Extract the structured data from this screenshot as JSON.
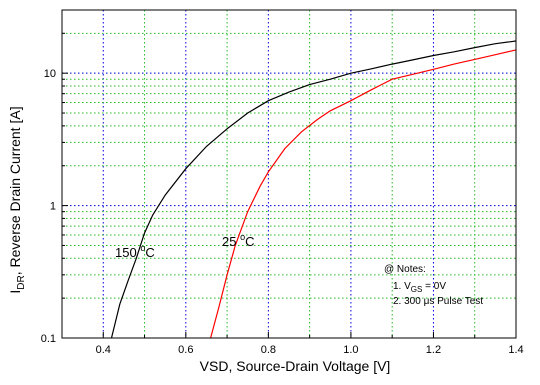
{
  "chart_data": {
    "type": "line",
    "xlabel": "VSD, Source-Drain Voltage [V]",
    "ylabel": {
      "main": "I",
      "sub": "DR",
      "rest": ", Reverse Drain Current [A]"
    },
    "x_scale": "linear",
    "y_scale": "log",
    "xlim": [
      0.3,
      1.4
    ],
    "ylim": [
      0.1,
      30
    ],
    "x_ticks": [
      "0.4",
      "0.6",
      "0.8",
      "1.0",
      "1.2",
      "1.4"
    ],
    "x_tick_values": [
      0.4,
      0.6,
      0.8,
      1.0,
      1.2,
      1.4
    ],
    "y_ticks": [
      "0.1",
      "1",
      "10"
    ],
    "y_tick_values": [
      0.1,
      1,
      10
    ],
    "grid": true,
    "series": [
      {
        "name": "150 °C",
        "color": "#000000",
        "points": [
          [
            0.42,
            0.1
          ],
          [
            0.44,
            0.18
          ],
          [
            0.46,
            0.27
          ],
          [
            0.48,
            0.4
          ],
          [
            0.5,
            0.62
          ],
          [
            0.52,
            0.85
          ],
          [
            0.55,
            1.2
          ],
          [
            0.6,
            1.9
          ],
          [
            0.65,
            2.8
          ],
          [
            0.7,
            3.8
          ],
          [
            0.75,
            5.0
          ],
          [
            0.8,
            6.2
          ],
          [
            0.85,
            7.2
          ],
          [
            0.9,
            8.2
          ],
          [
            0.95,
            9.0
          ],
          [
            1.0,
            10.0
          ],
          [
            1.05,
            10.8
          ],
          [
            1.1,
            11.7
          ],
          [
            1.15,
            12.6
          ],
          [
            1.2,
            13.6
          ],
          [
            1.25,
            14.5
          ],
          [
            1.3,
            15.6
          ],
          [
            1.35,
            16.7
          ],
          [
            1.4,
            17.5
          ]
        ]
      },
      {
        "name": "25 °C",
        "color": "#ff0000",
        "points": [
          [
            0.66,
            0.1
          ],
          [
            0.68,
            0.17
          ],
          [
            0.7,
            0.3
          ],
          [
            0.72,
            0.5
          ],
          [
            0.75,
            0.9
          ],
          [
            0.78,
            1.4
          ],
          [
            0.8,
            1.8
          ],
          [
            0.84,
            2.7
          ],
          [
            0.88,
            3.6
          ],
          [
            0.92,
            4.5
          ],
          [
            0.95,
            5.2
          ],
          [
            1.0,
            6.2
          ],
          [
            1.05,
            7.5
          ],
          [
            1.1,
            9.0
          ],
          [
            1.15,
            9.8
          ],
          [
            1.2,
            10.7
          ],
          [
            1.25,
            11.7
          ],
          [
            1.3,
            12.7
          ],
          [
            1.35,
            13.8
          ],
          [
            1.4,
            15.0
          ]
        ]
      }
    ],
    "annotations": [
      {
        "base": "150 ",
        "sup": "o",
        "unit": "C"
      },
      {
        "base": "25 ",
        "sup": "o",
        "unit": "C"
      }
    ],
    "notes": {
      "header": "@ Notes:",
      "line1": {
        "prefix": "1. V",
        "sub": "GS",
        "suffix": " = 0V"
      },
      "line2": "2. 300 μs Pulse Test"
    }
  }
}
